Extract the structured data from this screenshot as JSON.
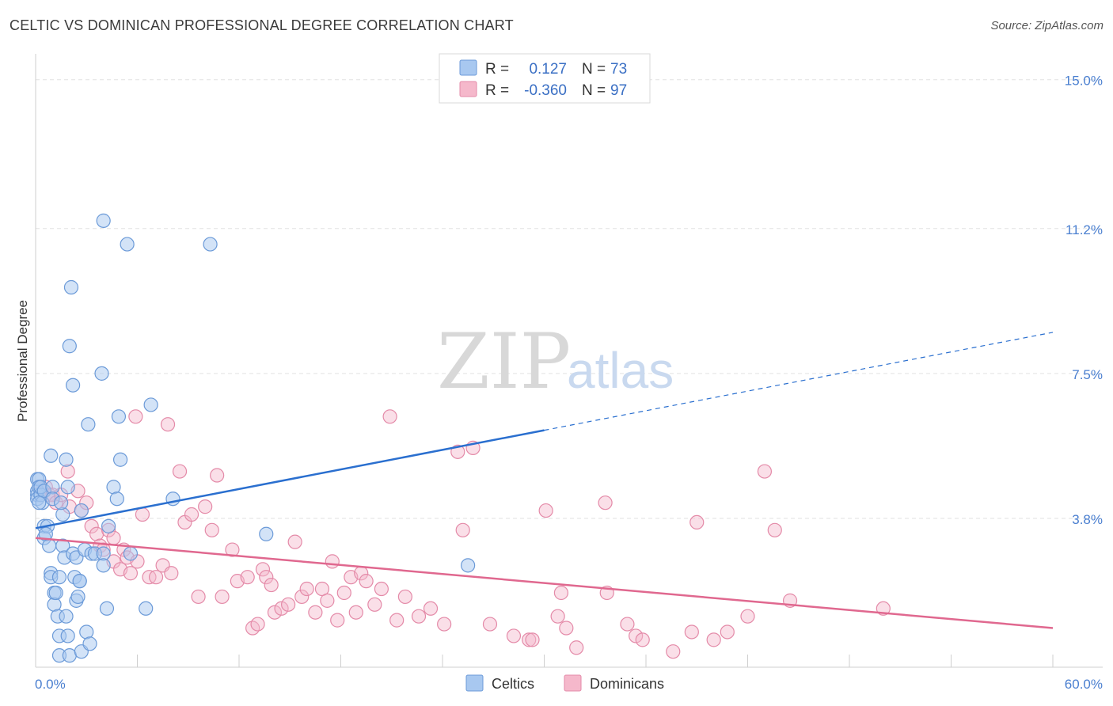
{
  "header": {
    "title": "CELTIC VS DOMINICAN PROFESSIONAL DEGREE CORRELATION CHART",
    "source": "Source: ZipAtlas.com"
  },
  "legend": {
    "r_label": "R =",
    "n_label": "N =",
    "celtics": {
      "r": "0.127",
      "n": "73"
    },
    "dominicans": {
      "r": "-0.360",
      "n": "97"
    }
  },
  "bottom_legend": {
    "celtics": "Celtics",
    "dominicans": "Dominicans"
  },
  "watermark": {
    "zip": "ZIP",
    "atlas": "atlas"
  },
  "colors": {
    "celtics_fill": "#a8c8f0",
    "celtics_stroke": "#6b9ad8",
    "celtics_line": "#2a6fcf",
    "dominicans_fill": "#f5b8cb",
    "dominicans_stroke": "#e48aa8",
    "dominicans_line": "#e0688f"
  },
  "chart_data": {
    "type": "scatter",
    "title": "CELTIC VS DOMINICAN PROFESSIONAL DEGREE CORRELATION CHART",
    "xlabel": "",
    "ylabel": "Professional Degree",
    "xlim": [
      0,
      60
    ],
    "ylim": [
      0,
      15.5
    ],
    "x_tick_labels": [
      "0.0%",
      "60.0%"
    ],
    "y_ticks": [
      3.8,
      7.5,
      11.2,
      15.0
    ],
    "y_tick_labels": [
      "3.8%",
      "7.5%",
      "11.2%",
      "15.0%"
    ],
    "grid": true,
    "legend_position": "top-center",
    "series": [
      {
        "name": "Celtics",
        "trend": {
          "x0": 0,
          "y0": 3.55,
          "x1": 30,
          "y1": 6.05,
          "dash_to_x": 60,
          "dash_to_y": 8.55
        },
        "points": [
          [
            0.1,
            4.8
          ],
          [
            0.1,
            4.5
          ],
          [
            0.1,
            4.4
          ],
          [
            0.1,
            4.3
          ],
          [
            0.2,
            4.8
          ],
          [
            0.2,
            4.6
          ],
          [
            0.3,
            4.4
          ],
          [
            0.4,
            4.2
          ],
          [
            0.3,
            4.6
          ],
          [
            0.5,
            4.5
          ],
          [
            0.5,
            3.6
          ],
          [
            0.5,
            3.3
          ],
          [
            0.7,
            3.6
          ],
          [
            0.6,
            3.4
          ],
          [
            0.8,
            3.1
          ],
          [
            0.9,
            5.4
          ],
          [
            1.0,
            4.6
          ],
          [
            1.0,
            4.3
          ],
          [
            0.9,
            2.4
          ],
          [
            0.9,
            2.3
          ],
          [
            1.1,
            1.9
          ],
          [
            1.1,
            1.6
          ],
          [
            1.2,
            1.9
          ],
          [
            1.3,
            1.3
          ],
          [
            1.4,
            0.8
          ],
          [
            1.4,
            0.3
          ],
          [
            1.4,
            2.3
          ],
          [
            1.6,
            3.1
          ],
          [
            1.6,
            3.9
          ],
          [
            1.5,
            4.2
          ],
          [
            1.7,
            2.8
          ],
          [
            1.8,
            5.3
          ],
          [
            1.9,
            4.6
          ],
          [
            1.8,
            1.3
          ],
          [
            1.9,
            0.8
          ],
          [
            2.0,
            0.3
          ],
          [
            2.0,
            8.2
          ],
          [
            2.1,
            9.7
          ],
          [
            2.2,
            7.2
          ],
          [
            2.2,
            2.9
          ],
          [
            2.3,
            2.3
          ],
          [
            2.4,
            1.7
          ],
          [
            2.4,
            2.8
          ],
          [
            2.5,
            1.8
          ],
          [
            2.6,
            2.2
          ],
          [
            2.6,
            2.2
          ],
          [
            2.7,
            4.0
          ],
          [
            2.7,
            0.4
          ],
          [
            2.9,
            3.0
          ],
          [
            3.0,
            0.9
          ],
          [
            3.1,
            6.2
          ],
          [
            3.2,
            0.6
          ],
          [
            3.3,
            2.9
          ],
          [
            3.5,
            2.9
          ],
          [
            3.9,
            7.5
          ],
          [
            4.0,
            2.9
          ],
          [
            4.0,
            11.4
          ],
          [
            4.0,
            2.6
          ],
          [
            4.2,
            1.5
          ],
          [
            4.3,
            3.6
          ],
          [
            4.6,
            4.6
          ],
          [
            4.8,
            4.3
          ],
          [
            4.9,
            6.4
          ],
          [
            5.0,
            5.3
          ],
          [
            5.4,
            10.8
          ],
          [
            5.6,
            2.9
          ],
          [
            6.5,
            1.5
          ],
          [
            6.8,
            6.7
          ],
          [
            8.1,
            4.3
          ],
          [
            10.3,
            10.8
          ],
          [
            13.6,
            3.4
          ],
          [
            25.5,
            2.6
          ],
          [
            0.2,
            4.2
          ]
        ]
      },
      {
        "name": "Dominicans",
        "trend": {
          "x0": 0,
          "y0": 3.3,
          "x1": 60,
          "y1": 1.0
        },
        "points": [
          [
            0.3,
            4.6
          ],
          [
            0.6,
            4.6
          ],
          [
            0.8,
            4.4
          ],
          [
            1.0,
            4.4
          ],
          [
            1.2,
            4.2
          ],
          [
            1.5,
            4.4
          ],
          [
            1.9,
            5.0
          ],
          [
            2.0,
            4.1
          ],
          [
            2.5,
            4.5
          ],
          [
            2.7,
            4.0
          ],
          [
            3.0,
            4.2
          ],
          [
            3.3,
            3.6
          ],
          [
            3.6,
            3.4
          ],
          [
            3.8,
            3.1
          ],
          [
            4.0,
            3.0
          ],
          [
            4.3,
            3.5
          ],
          [
            4.6,
            3.3
          ],
          [
            4.6,
            2.7
          ],
          [
            5.0,
            2.5
          ],
          [
            5.2,
            3.0
          ],
          [
            5.4,
            2.8
          ],
          [
            5.6,
            2.4
          ],
          [
            5.9,
            6.4
          ],
          [
            6.0,
            2.7
          ],
          [
            6.3,
            3.9
          ],
          [
            6.7,
            2.3
          ],
          [
            7.1,
            2.3
          ],
          [
            7.5,
            2.6
          ],
          [
            7.8,
            6.2
          ],
          [
            8.0,
            2.4
          ],
          [
            8.5,
            5.0
          ],
          [
            8.8,
            3.7
          ],
          [
            9.2,
            3.9
          ],
          [
            9.6,
            1.8
          ],
          [
            10.0,
            4.1
          ],
          [
            10.4,
            3.5
          ],
          [
            10.7,
            4.9
          ],
          [
            11.0,
            1.8
          ],
          [
            11.6,
            3.0
          ],
          [
            11.9,
            2.2
          ],
          [
            12.5,
            2.3
          ],
          [
            12.8,
            1.0
          ],
          [
            13.1,
            1.1
          ],
          [
            13.4,
            2.5
          ],
          [
            13.6,
            2.3
          ],
          [
            13.9,
            2.1
          ],
          [
            14.1,
            1.4
          ],
          [
            14.5,
            1.5
          ],
          [
            14.9,
            1.6
          ],
          [
            15.3,
            3.2
          ],
          [
            15.7,
            1.8
          ],
          [
            16.0,
            2.0
          ],
          [
            16.5,
            1.4
          ],
          [
            16.9,
            2.0
          ],
          [
            17.2,
            1.7
          ],
          [
            17.5,
            2.7
          ],
          [
            17.8,
            1.2
          ],
          [
            18.2,
            1.9
          ],
          [
            18.6,
            2.3
          ],
          [
            18.9,
            1.4
          ],
          [
            19.2,
            2.4
          ],
          [
            19.5,
            2.2
          ],
          [
            20.0,
            1.6
          ],
          [
            20.4,
            2.0
          ],
          [
            20.9,
            6.4
          ],
          [
            21.3,
            1.2
          ],
          [
            21.8,
            1.8
          ],
          [
            22.6,
            1.3
          ],
          [
            23.3,
            1.5
          ],
          [
            24.1,
            1.1
          ],
          [
            24.9,
            5.5
          ],
          [
            25.2,
            3.5
          ],
          [
            25.8,
            5.6
          ],
          [
            26.8,
            1.1
          ],
          [
            28.2,
            0.8
          ],
          [
            29.1,
            0.7
          ],
          [
            29.3,
            0.7
          ],
          [
            30.1,
            4.0
          ],
          [
            30.8,
            1.3
          ],
          [
            31.0,
            1.9
          ],
          [
            31.3,
            1.0
          ],
          [
            31.9,
            0.5
          ],
          [
            33.6,
            4.2
          ],
          [
            33.7,
            1.9
          ],
          [
            34.9,
            1.1
          ],
          [
            35.4,
            0.8
          ],
          [
            35.8,
            0.7
          ],
          [
            37.6,
            0.4
          ],
          [
            38.7,
            0.9
          ],
          [
            39.0,
            3.7
          ],
          [
            40.0,
            0.7
          ],
          [
            40.8,
            0.9
          ],
          [
            42.0,
            1.3
          ],
          [
            43.0,
            5.0
          ],
          [
            43.6,
            3.5
          ],
          [
            44.5,
            1.7
          ],
          [
            50.0,
            1.5
          ]
        ]
      }
    ]
  }
}
